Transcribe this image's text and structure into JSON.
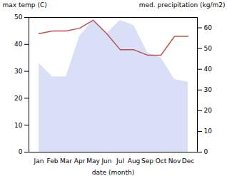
{
  "chart_data": {
    "type": "line",
    "categories": [
      "Jan",
      "Feb",
      "Mar",
      "Apr",
      "May",
      "Jun",
      "Jul",
      "Aug",
      "Sep",
      "Oct",
      "Nov",
      "Dec"
    ],
    "series": [
      {
        "type": "area",
        "color": "#b8c4f0",
        "values": [
          33,
          28,
          28,
          43,
          49,
          44,
          49,
          47,
          37,
          35,
          27,
          26
        ]
      },
      {
        "type": "line",
        "color": "#c0504d",
        "values": [
          44,
          45,
          45,
          46,
          49,
          44,
          38,
          38,
          36,
          36,
          43,
          43
        ]
      }
    ],
    "xlabel": "date (month)",
    "ylabel": "max temp (C)",
    "y2label": "med. precipitation (kg/m2)",
    "ylim": [
      0,
      50
    ],
    "yticks": [
      0,
      10,
      20,
      30,
      40,
      50
    ],
    "y2lim": [
      0,
      65
    ],
    "y2ticks": [
      0,
      10,
      20,
      30,
      40,
      50,
      60
    ],
    "grid": false
  }
}
